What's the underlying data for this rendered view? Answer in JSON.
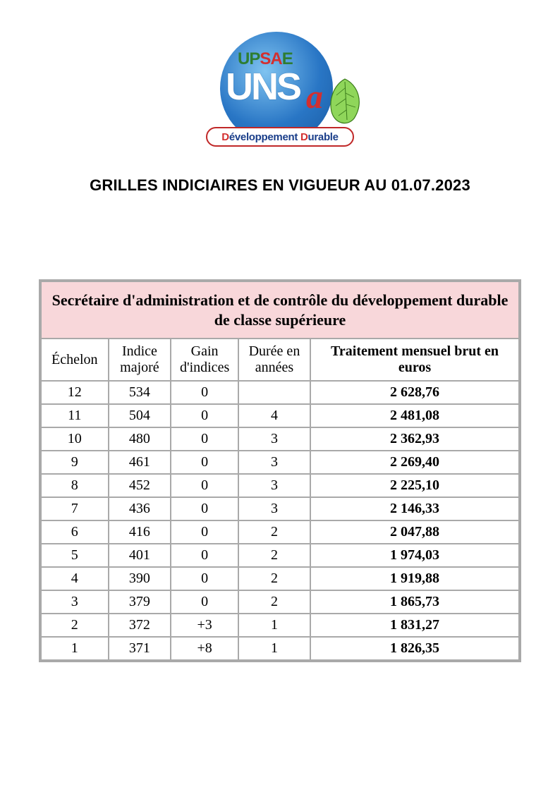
{
  "logo": {
    "upsae_up": "UP",
    "upsae_sa": "SA",
    "upsae_e": "E",
    "unsa": "UNS",
    "cursive_a": "a",
    "banner_d1": "D",
    "banner_mid1": "éveloppement ",
    "banner_d2": "D",
    "banner_mid2": "urable",
    "circle_color": "#2976c5",
    "leaf_color": "#6fbf3a",
    "banner_border": "#c02828"
  },
  "title": "GRILLES INDICIAIRES EN VIGUEUR AU 01.07.2023",
  "table": {
    "heading": "Secrétaire d'administration et de contrôle du développement durable de classe supérieure",
    "heading_bg": "#f8d7da",
    "border_color": "#a9a9a9",
    "columns": [
      {
        "label": "Échelon",
        "bold": false
      },
      {
        "label": "Indice majoré",
        "bold": false
      },
      {
        "label": "Gain d'indices",
        "bold": false
      },
      {
        "label": "Durée en années",
        "bold": false
      },
      {
        "label": "Traitement mensuel brut en euros",
        "bold": true
      }
    ],
    "rows": [
      {
        "echelon": "12",
        "indice": "534",
        "gain": "0",
        "duree": "",
        "traitement": "2 628,76"
      },
      {
        "echelon": "11",
        "indice": "504",
        "gain": "0",
        "duree": "4",
        "traitement": "2 481,08"
      },
      {
        "echelon": "10",
        "indice": "480",
        "gain": "0",
        "duree": "3",
        "traitement": "2 362,93"
      },
      {
        "echelon": "9",
        "indice": "461",
        "gain": "0",
        "duree": "3",
        "traitement": "2 269,40"
      },
      {
        "echelon": "8",
        "indice": "452",
        "gain": "0",
        "duree": "3",
        "traitement": "2 225,10"
      },
      {
        "echelon": "7",
        "indice": "436",
        "gain": "0",
        "duree": "3",
        "traitement": "2 146,33"
      },
      {
        "echelon": "6",
        "indice": "416",
        "gain": "0",
        "duree": "2",
        "traitement": "2 047,88"
      },
      {
        "echelon": "5",
        "indice": "401",
        "gain": "0",
        "duree": "2",
        "traitement": "1 974,03"
      },
      {
        "echelon": "4",
        "indice": "390",
        "gain": "0",
        "duree": "2",
        "traitement": "1 919,88"
      },
      {
        "echelon": "3",
        "indice": "379",
        "gain": "0",
        "duree": "2",
        "traitement": "1 865,73"
      },
      {
        "echelon": "2",
        "indice": "372",
        "gain": "+3",
        "duree": "1",
        "traitement": "1 831,27"
      },
      {
        "echelon": "1",
        "indice": "371",
        "gain": "+8",
        "duree": "1",
        "traitement": "1 826,35"
      }
    ]
  }
}
